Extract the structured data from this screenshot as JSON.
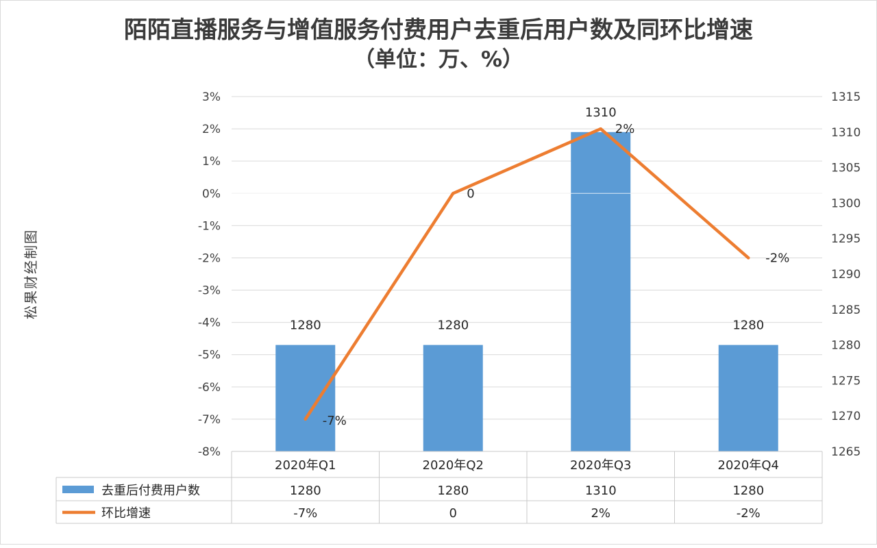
{
  "chart_data": {
    "type": "bar",
    "title": "陌陌直播服务与增值服务付费用户去重后用户数及同环比增速",
    "subtitle": "（单位：万、%）",
    "watermark": "松果财经制图",
    "categories": [
      "2020年Q1",
      "2020年Q2",
      "2020年Q3",
      "2020年Q4"
    ],
    "series": [
      {
        "name": "去重后付费用户数",
        "type": "bar",
        "axis": "right",
        "color": "#5B9BD5",
        "values": [
          1280,
          1280,
          1310,
          1280
        ],
        "labels": [
          "1280",
          "1280",
          "1310",
          "1280"
        ]
      },
      {
        "name": "环比增速",
        "type": "line",
        "axis": "left",
        "color": "#ED7D31",
        "values": [
          -7,
          0,
          2,
          -2
        ],
        "labels": [
          "-7%",
          "0",
          "2%",
          "-2%"
        ]
      }
    ],
    "left_axis": {
      "ylim": [
        -8,
        3
      ],
      "ticks": [
        "3%",
        "2%",
        "1%",
        "0%",
        "-1%",
        "-2%",
        "-3%",
        "-4%",
        "-5%",
        "-6%",
        "-7%",
        "-8%"
      ]
    },
    "right_axis": {
      "ylim": [
        1265,
        1315
      ],
      "ticks": [
        "1315",
        "1310",
        "1305",
        "1300",
        "1295",
        "1290",
        "1285",
        "1280",
        "1275",
        "1270",
        "1265"
      ]
    },
    "grid": true,
    "data_table": {
      "rows": [
        {
          "label": "去重后付费用户数",
          "cells": [
            "1280",
            "1280",
            "1310",
            "1280"
          ]
        },
        {
          "label": "环比增速",
          "cells": [
            "-7%",
            "0",
            "2%",
            "-2%"
          ]
        }
      ]
    }
  }
}
